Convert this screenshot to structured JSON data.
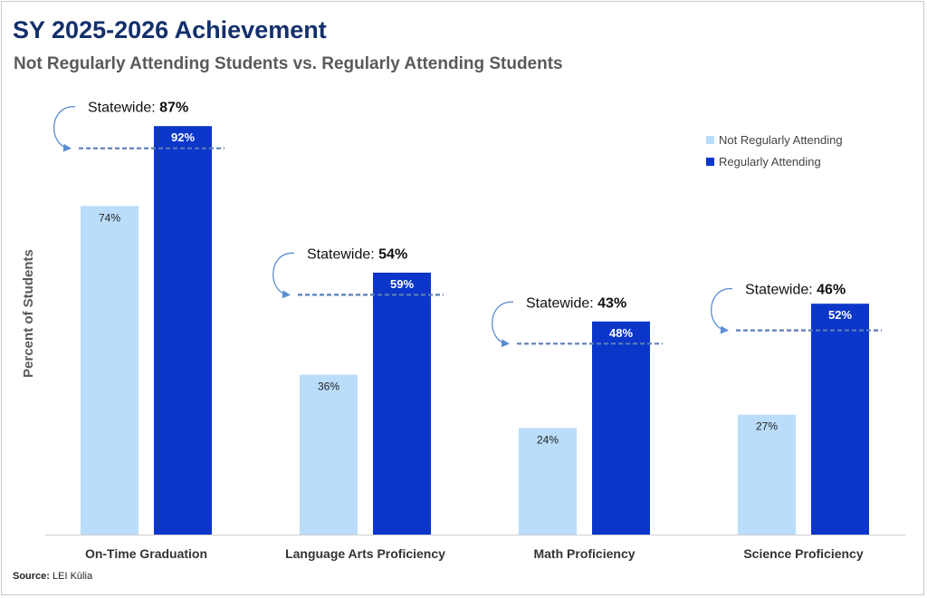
{
  "title": "SY 2025-2026 Achievement",
  "subtitle": "Not Regularly Attending Students vs. Regularly Attending Students",
  "source_label": "Source:",
  "source_text": "LEI Kūlia",
  "statewide_label": "Statewide:",
  "colors": {
    "not_regular": "#b9ddfa",
    "regular": "#0b36c9",
    "title": "#13306b",
    "statewide_line": "#5b7db8",
    "arrow": "#5b8dd0"
  },
  "chart_data": {
    "type": "bar",
    "title": "SY 2025-2026 Achievement",
    "subtitle": "Not Regularly Attending Students vs. Regularly Attending Students",
    "xlabel": "",
    "ylabel": "Percent of Students",
    "ylim": [
      0,
      100
    ],
    "grid": false,
    "legend_position": "top-right",
    "categories": [
      "On-Time Graduation",
      "Language Arts Proficiency",
      "Math Proficiency",
      "Science Proficiency"
    ],
    "series": [
      {
        "name": "Not Regularly Attending",
        "values": [
          74,
          36,
          24,
          27
        ],
        "labels": [
          "74%",
          "36%",
          "24%",
          "27%"
        ],
        "color": "#b9ddfa"
      },
      {
        "name": "Regularly Attending",
        "values": [
          92,
          59,
          48,
          52
        ],
        "labels": [
          "92%",
          "59%",
          "48%",
          "52%"
        ],
        "color": "#0b36c9"
      }
    ],
    "statewide": {
      "values": [
        87,
        54,
        43,
        46
      ],
      "labels": [
        "87%",
        "54%",
        "43%",
        "46%"
      ]
    }
  }
}
